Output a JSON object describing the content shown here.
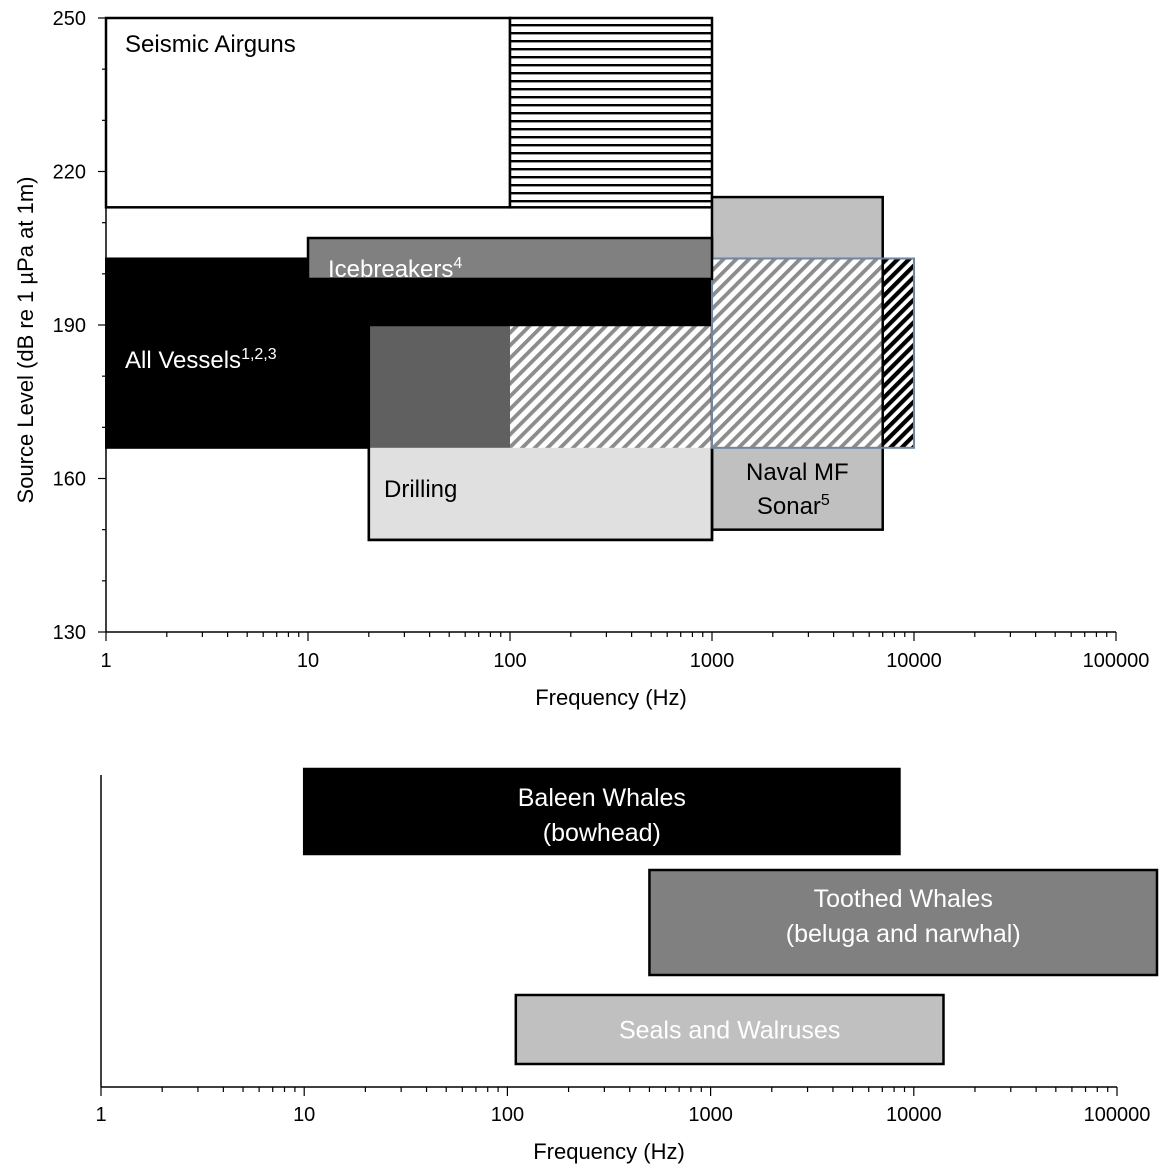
{
  "chart_data": [
    {
      "type": "bar",
      "subtype": "range-boxes",
      "title": "",
      "xlabel": "Frequency (Hz)",
      "ylabel": "Source Level (dB re 1 µPa at 1m)",
      "xscale": "log",
      "xlim": [
        1,
        100000
      ],
      "ylim": [
        130,
        250
      ],
      "x_ticks": [
        "1",
        "10",
        "100",
        "1000",
        "10000",
        "100000"
      ],
      "y_ticks": [
        "130",
        "160",
        "190",
        "220",
        "250"
      ],
      "grid": false,
      "legend": "none",
      "boxes": [
        {
          "label": "Seismic Airguns",
          "sup": "",
          "x": [
            1,
            100
          ],
          "y": [
            213,
            250
          ],
          "fill": "#ffffff",
          "pattern": "none",
          "label_color": "#000000"
        },
        {
          "label": "",
          "sup": "",
          "x": [
            100,
            1000
          ],
          "y": [
            213,
            250
          ],
          "fill": "#ffffff",
          "pattern": "horizontal",
          "label_color": "#000000"
        },
        {
          "label": "Naval MF",
          "label2": "Sonar",
          "sup": "5",
          "x": [
            1000,
            7000
          ],
          "y": [
            150,
            215
          ],
          "fill": "#c0c0c0",
          "pattern": "none",
          "label_color": "#000000"
        },
        {
          "label": "All Vessels",
          "sup": "1,2,3",
          "x": [
            1,
            1000
          ],
          "y": [
            166,
            203
          ],
          "fill": "#000000",
          "pattern": "none",
          "label_color": "#ffffff"
        },
        {
          "label": "",
          "sup": "",
          "x": [
            1000,
            10000
          ],
          "y": [
            166,
            203
          ],
          "fill": "#ffffff",
          "pattern": "diagonal",
          "label_color": "#000000"
        },
        {
          "label": "Icebreakers",
          "sup": "4",
          "x": [
            10,
            1000
          ],
          "y": [
            199,
            207
          ],
          "fill": "#808080",
          "pattern": "none",
          "label_color": "#ffffff"
        },
        {
          "label": "Drilling",
          "sup": "",
          "x": [
            20,
            1000
          ],
          "y": [
            148,
            190
          ],
          "fill": "#e0e0e0",
          "pattern": "none",
          "label_color": "#000000"
        }
      ]
    },
    {
      "type": "bar",
      "subtype": "horizontal-range",
      "title": "",
      "xlabel": "Frequency (Hz)",
      "xscale": "log",
      "xlim": [
        1,
        100000
      ],
      "x_ticks": [
        "1",
        "10",
        "100",
        "1000",
        "10000",
        "100000"
      ],
      "grid": false,
      "legend": "none",
      "bars": [
        {
          "line1": "Baleen Whales",
          "line2": "(bowhead)",
          "x": [
            10,
            8500
          ],
          "fill": "#000000",
          "text_color": "#ffffff"
        },
        {
          "line1": "Toothed Whales",
          "line2": "(beluga and narwhal)",
          "x": [
            500,
            160000
          ],
          "fill": "#808080",
          "text_color": "#ffffff"
        },
        {
          "line1": "Seals and Walruses",
          "line2": "",
          "x": [
            110,
            14000
          ],
          "fill": "#c0c0c0",
          "text_color": "#ffffff"
        }
      ]
    }
  ]
}
